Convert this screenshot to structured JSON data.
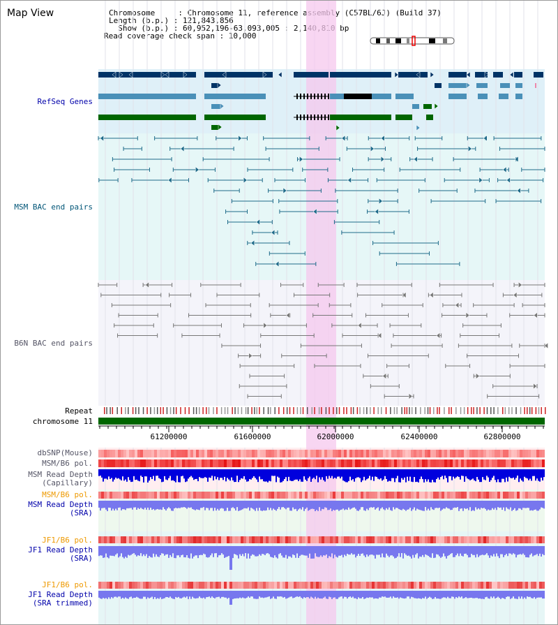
{
  "view_title": "Map View",
  "header": {
    "line1": "Chromosome     : Chromosome 11, reference assembly (C57BL/6J) (Build 37)",
    "line2": "Length (b.p.) : 121,843,856",
    "line3": "  Show (b.p.) : 60,952,196-63,093,005 : 2,140,810 bp",
    "line4": "Read coverage check span : 10,000"
  },
  "tracks": {
    "refseq": "RefSeq Genes",
    "msm_bac": "MSM BAC end pairs",
    "b6n_bac": "B6N BAC end pairs",
    "repeat": "Repeat",
    "chromosome": "chromosome 11",
    "dbsnp": "dbSNP(Mouse)",
    "msm_b6_pol": "MSM/B6 pol.",
    "msm_depth_cap_1": "MSM Read Depth",
    "msm_depth_cap_2": "(Capillary)",
    "msm_b6_pol_2": "MSM/B6 pol.",
    "msm_depth_sra_1": "MSM Read Depth",
    "msm_depth_sra_2": "(SRA)",
    "jf1_b6_pol": "JF1/B6 pol.",
    "jf1_depth_sra_1": "JF1 Read Depth",
    "jf1_depth_sra_2": "(SRA)",
    "jf1_b6_pol_2": "JF1/B6 pol.",
    "jf1_depth_trim_1": "JF1 Read Depth",
    "jf1_depth_trim_2": "(SRA trimmed)"
  },
  "axis": {
    "ticks": [
      "61200000",
      "61600000",
      "62000000",
      "62400000",
      "62800000"
    ]
  },
  "colors": {
    "highlight": "#f5c8ee",
    "refseq_bg": "#dff0f8",
    "msm_bg": "#e6f7f7",
    "b6n_bg": "#f4f4fa",
    "gene_navy": "#003366",
    "gene_teal": "#4a90b8",
    "gene_green": "#006600",
    "msm_pair": "#1f6b8a",
    "b6n_pair": "#777777",
    "chrom_bar": "#006600",
    "depth_blue": "#0000dd",
    "depth_violet": "#7777ee"
  }
}
